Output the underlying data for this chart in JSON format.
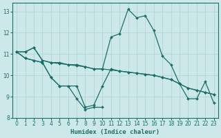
{
  "title": "",
  "xlabel": "Humidex (Indice chaleur)",
  "ylabel": "",
  "bg_color": "#cde8e8",
  "line_color": "#1a6e6a",
  "grid_color": "#b8d8d8",
  "xlim": [
    -0.5,
    23.5
  ],
  "ylim": [
    8,
    13.4
  ],
  "yticks": [
    8,
    9,
    10,
    11,
    12,
    13
  ],
  "xtick_labels": [
    "0",
    "1",
    "2",
    "3",
    "4",
    "5",
    "6",
    "7",
    "8",
    "9",
    "10",
    "11",
    "12",
    "13",
    "14",
    "15",
    "16",
    "17",
    "18",
    "19",
    "20",
    "21",
    "22",
    "23"
  ],
  "xticks": [
    0,
    1,
    2,
    3,
    4,
    5,
    6,
    7,
    8,
    9,
    10,
    11,
    12,
    13,
    14,
    15,
    16,
    17,
    18,
    19,
    20,
    21,
    22,
    23
  ],
  "curves": [
    {
      "x": [
        0,
        1,
        2,
        3,
        4,
        5,
        6,
        7,
        8,
        9,
        10,
        11,
        12,
        13,
        14,
        15,
        16,
        17,
        18,
        19,
        20,
        21,
        22,
        23
      ],
      "y": [
        11.1,
        11.1,
        11.3,
        10.7,
        10.6,
        10.6,
        10.5,
        10.5,
        10.4,
        10.3,
        10.3,
        11.8,
        11.95,
        13.1,
        12.7,
        12.8,
        12.1,
        10.9,
        10.5,
        9.6,
        8.9,
        8.9,
        9.7,
        8.7
      ]
    },
    {
      "x": [
        0,
        1,
        2,
        3,
        4,
        5,
        6,
        7,
        8,
        9,
        10,
        11,
        12,
        13,
        14,
        15,
        16,
        17,
        18,
        19,
        20,
        21,
        22,
        23
      ],
      "y": [
        11.1,
        11.1,
        11.3,
        10.7,
        10.6,
        10.55,
        10.5,
        10.45,
        10.4,
        10.3,
        10.3,
        10.25,
        10.2,
        10.15,
        10.1,
        10.05,
        10.0,
        9.9,
        9.8,
        9.6,
        9.4,
        9.3,
        9.2,
        9.1
      ]
    },
    {
      "x": [
        0,
        1,
        2,
        3,
        4,
        5,
        6,
        7,
        8,
        9,
        10,
        11,
        12,
        13,
        14,
        15,
        16,
        17,
        18,
        19,
        20,
        21,
        22,
        23
      ],
      "y": [
        11.1,
        10.8,
        10.7,
        10.6,
        9.9,
        9.5,
        9.5,
        9.5,
        8.5,
        8.6,
        9.5,
        10.3,
        10.2,
        10.15,
        10.1,
        10.05,
        10.0,
        9.9,
        9.8,
        9.6,
        9.4,
        9.3,
        9.2,
        9.1
      ]
    },
    {
      "x": [
        0,
        1,
        2,
        3,
        4,
        5,
        6,
        7,
        8,
        9,
        10
      ],
      "y": [
        11.1,
        10.8,
        10.7,
        10.6,
        9.9,
        9.5,
        9.5,
        8.9,
        8.4,
        8.5,
        8.5
      ]
    }
  ]
}
